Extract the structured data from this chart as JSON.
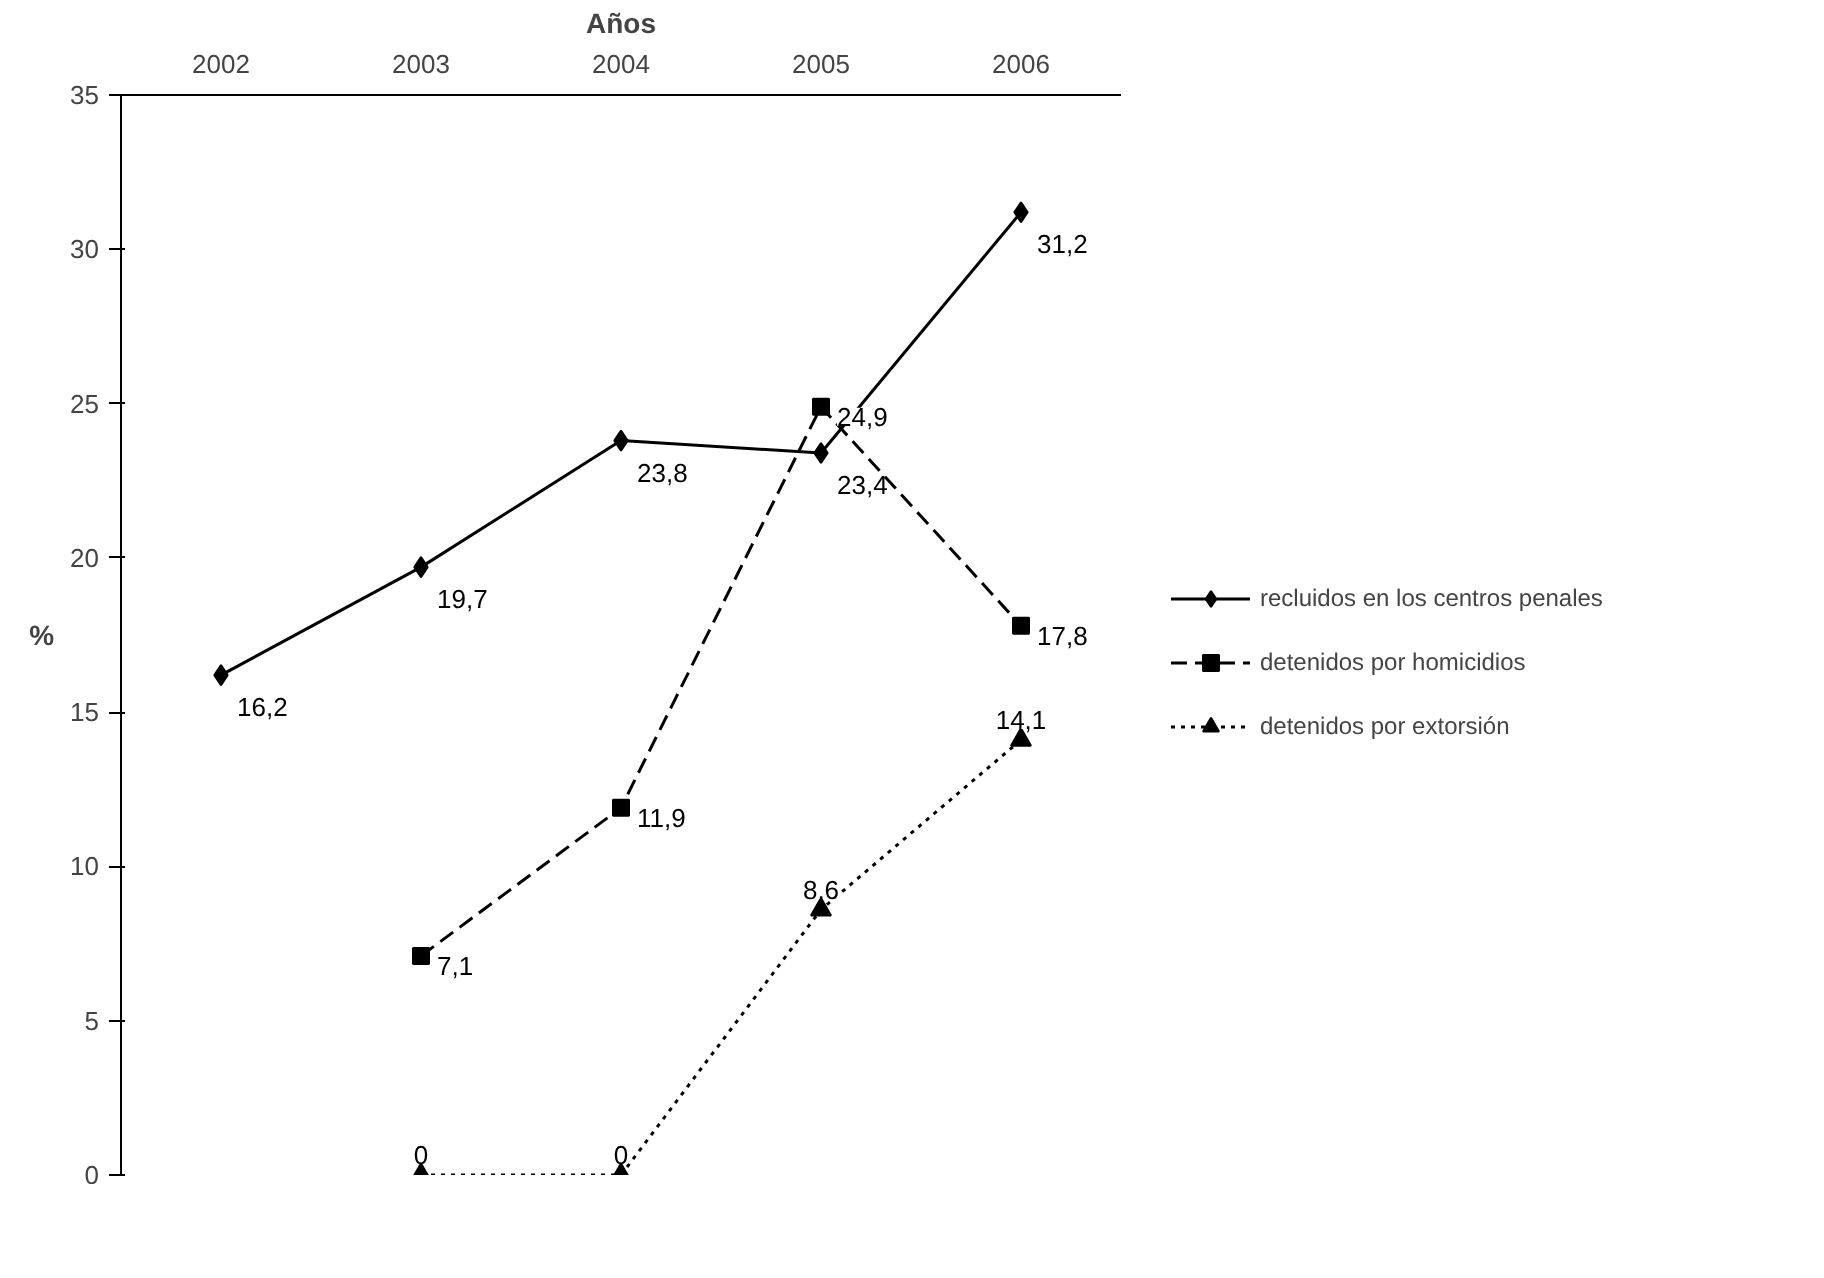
{
  "chart_data": {
    "type": "line",
    "xlabel": "Años",
    "ylabel": "%",
    "categories": [
      "2002",
      "2003",
      "2004",
      "2005",
      "2006"
    ],
    "ylim": [
      0,
      35
    ],
    "yticks": [
      0,
      5,
      10,
      15,
      20,
      25,
      30,
      35
    ],
    "grid": false,
    "legend": "right",
    "series": [
      {
        "name": "recluidos en los centros penales",
        "color": "#000000",
        "marker": "diamond",
        "line_style": "solid",
        "values": [
          16.2,
          19.7,
          23.8,
          23.4,
          31.2
        ],
        "value_labels": [
          "16,2",
          "19,7",
          "23,8",
          "23,4",
          "31,2"
        ]
      },
      {
        "name": "detenidos por homicidios",
        "color": "#000000",
        "marker": "square",
        "line_style": "dashed",
        "values": [
          null,
          7.1,
          11.9,
          24.9,
          17.8
        ],
        "value_labels": [
          null,
          "7,1",
          "11,9",
          "24,9",
          "17,8"
        ]
      },
      {
        "name": "detenidos por extorsión",
        "color": "#000000",
        "marker": "triangle",
        "line_style": "dotted",
        "values": [
          null,
          0,
          0,
          8.6,
          14.1
        ],
        "value_labels": [
          null,
          "0",
          "0",
          "8,6",
          "14,1"
        ]
      }
    ]
  }
}
